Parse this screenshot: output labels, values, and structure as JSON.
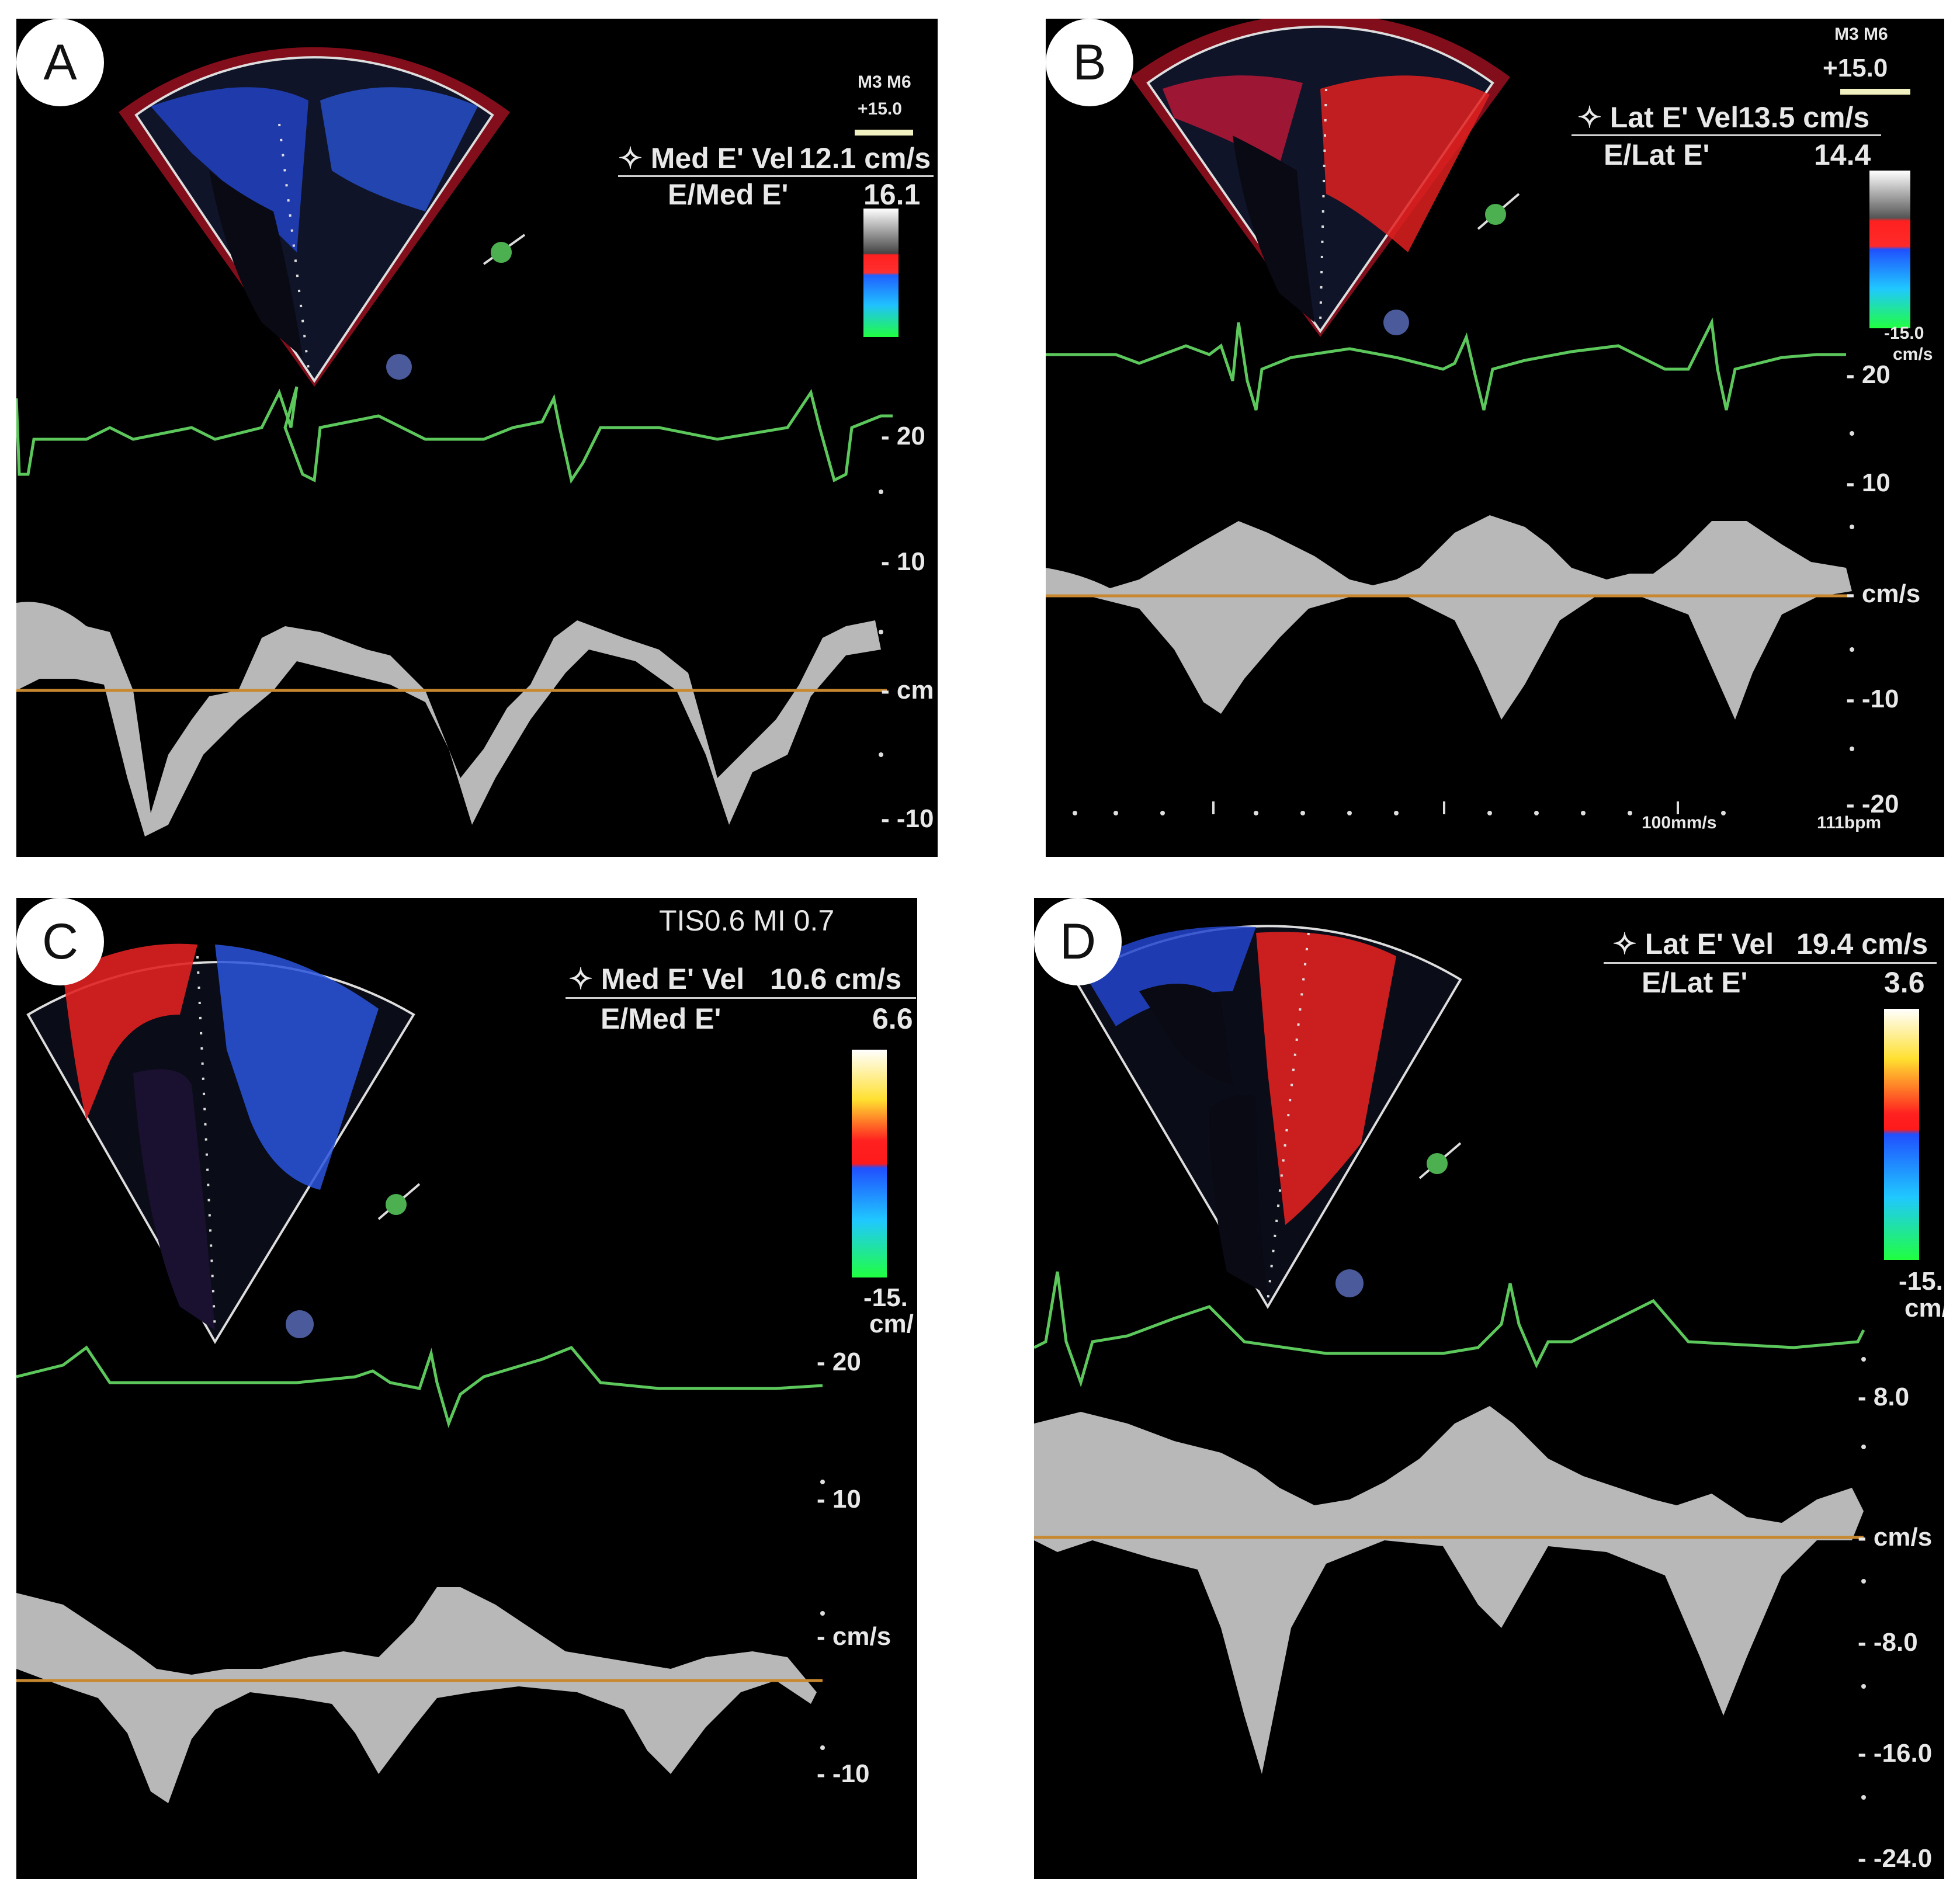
{
  "panels": [
    {
      "letter": "A",
      "probe_label": "M3 M6",
      "color_scale_top": "+15.0",
      "measurement_label": "✧ Med E' Vel",
      "measurement_value": "12.1 cm/s",
      "ratio_label": "E/Med E'",
      "ratio_value": "16.1",
      "scale_labels": [
        "- 20",
        "- 10",
        "- cm",
        "- -10"
      ],
      "colors": {
        "ecg": "#5cc85c",
        "baseline": "#c8882f"
      }
    },
    {
      "letter": "B",
      "probe_label": "M3 M6",
      "color_scale_top": "+15.0",
      "measurement_label": "✧ Lat E' Vel",
      "measurement_value": "13.5 cm/s",
      "ratio_label": "E/Lat E'",
      "ratio_value": "14.4",
      "color_scale_bottom": "-15.0",
      "color_scale_unit": "cm/s",
      "scale_labels": [
        "- 20",
        "- 10",
        "- cm/s",
        "- -10",
        "- -20"
      ],
      "sweep_speed": "100mm/s",
      "heart_rate": "111bpm",
      "colors": {
        "ecg": "#5cc85c",
        "baseline": "#c8882f"
      }
    },
    {
      "letter": "C",
      "safety_indices": "TIS0.6   MI 0.7",
      "measurement_label": "✧ Med E' Vel",
      "measurement_value": "10.6 cm/s",
      "ratio_label": "E/Med E'",
      "ratio_value": "6.6",
      "color_scale_bottom": "-15.",
      "color_scale_unit": "cm/",
      "scale_labels": [
        "- 20",
        "- 10",
        "- cm/s",
        "- -10"
      ],
      "colors": {
        "ecg": "#5cc85c",
        "baseline": "#c8882f"
      }
    },
    {
      "letter": "D",
      "measurement_label": "✧ Lat E' Vel",
      "measurement_value": "19.4 cm/s",
      "ratio_label": "E/Lat E'",
      "ratio_value": "3.6",
      "color_scale_bottom": "-15.",
      "color_scale_unit": "cm/",
      "scale_labels": [
        "- 8.0",
        "- cm/s",
        "- -8.0",
        "- -16.0",
        "- -24.0"
      ],
      "colors": {
        "ecg": "#5cc85c",
        "baseline": "#c8882f"
      }
    }
  ]
}
